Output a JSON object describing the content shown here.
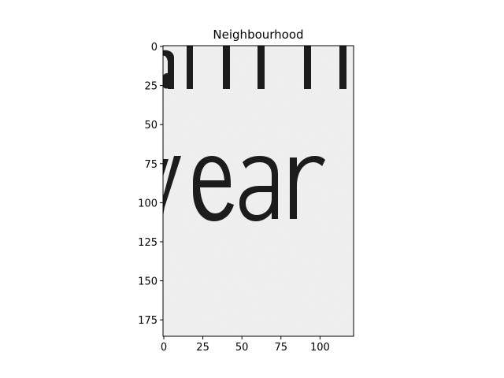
{
  "chart_data": {
    "type": "image",
    "title": "Neighbourhood",
    "xlabel": "",
    "ylabel": "",
    "image_width": 122,
    "image_height": 186,
    "xlim": [
      -0.5,
      121.5
    ],
    "ylim": [
      185.5,
      -0.5
    ],
    "x_ticks": [
      0,
      25,
      50,
      75,
      100
    ],
    "x_tick_labels": [
      "0",
      "25",
      "50",
      "75",
      "100"
    ],
    "y_ticks": [
      0,
      25,
      50,
      75,
      100,
      125,
      150,
      175
    ],
    "y_tick_labels": [
      "0",
      "25",
      "50",
      "75",
      "100",
      "125",
      "150",
      "175"
    ],
    "grid": false,
    "colormap": "gray",
    "image_content": {
      "description_text": "year",
      "background_color": "#f0f0f0",
      "ink_color": "#1c1c1c"
    }
  }
}
